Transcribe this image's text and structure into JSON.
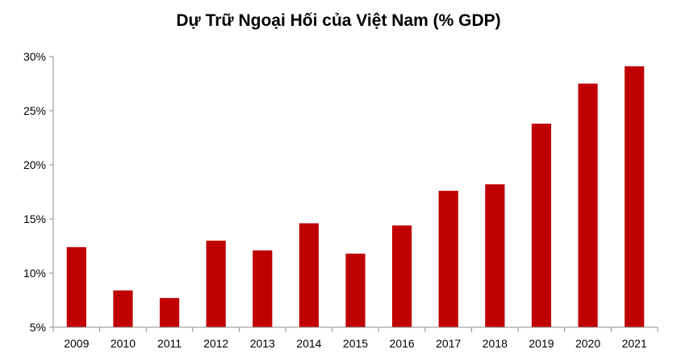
{
  "chart_data": {
    "type": "bar",
    "title": "Dự Trữ Ngoại Hối của Việt Nam (% GDP)",
    "xlabel": "",
    "ylabel": "",
    "categories": [
      "2009",
      "2010",
      "2011",
      "2012",
      "2013",
      "2014",
      "2015",
      "2016",
      "2017",
      "2018",
      "2019",
      "2020",
      "2021"
    ],
    "values": [
      12.4,
      8.4,
      7.7,
      13.0,
      12.1,
      14.6,
      11.8,
      14.4,
      17.6,
      18.2,
      23.8,
      27.5,
      29.1
    ],
    "ylim": [
      5,
      30
    ],
    "yticks": [
      5,
      10,
      15,
      20,
      25,
      30
    ],
    "ytick_labels": [
      "5%",
      "10%",
      "15%",
      "20%",
      "25%",
      "30%"
    ],
    "bar_color": "#c00000",
    "grid": false,
    "legend": "none"
  }
}
